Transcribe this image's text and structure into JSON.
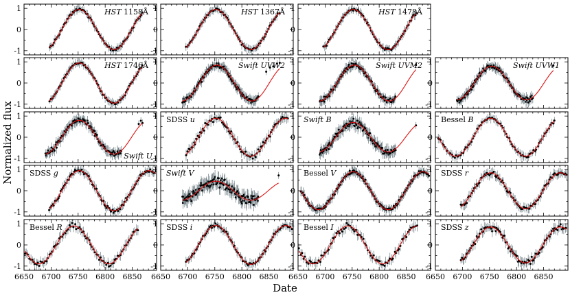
{
  "chart_data": {
    "type": "scatter",
    "xlabel": "Date",
    "ylabel": "Normalized flux",
    "xlim": [
      6650,
      6895
    ],
    "ylim": [
      -1.2,
      1.2
    ],
    "xticks": [
      "6650",
      "6700",
      "6750",
      "6800",
      "6850"
    ],
    "yticks": [
      "1",
      "0",
      "-1"
    ],
    "model": {
      "description": "sinusoid",
      "period_days": 129,
      "peak_date": 6752,
      "amplitude": 0.95,
      "color": "#dd1111"
    },
    "panels": [
      {
        "id": "hst1158",
        "row": 0,
        "col": 0,
        "label_italic": "HST",
        "label_roman": " 1158Å",
        "label_pos": "top-right",
        "x_start": 6697,
        "x_end": 6869,
        "n": 85,
        "scatter": 0.05,
        "amp": 0.95,
        "phase_shift": 0
      },
      {
        "id": "hst1367",
        "row": 0,
        "col": 1,
        "label_italic": "HST",
        "label_roman": " 1367Å",
        "label_pos": "top-right",
        "x_start": 6697,
        "x_end": 6869,
        "n": 85,
        "scatter": 0.05,
        "amp": 0.95,
        "phase_shift": 0
      },
      {
        "id": "hst1478",
        "row": 0,
        "col": 2,
        "label_italic": "HST",
        "label_roman": " 1478Å",
        "label_pos": "top-right",
        "x_start": 6697,
        "x_end": 6869,
        "n": 85,
        "scatter": 0.05,
        "amp": 0.95,
        "phase_shift": 0
      },
      {
        "id": "hst1746",
        "row": 1,
        "col": 0,
        "label_italic": "HST",
        "label_roman": " 1746Å",
        "label_pos": "top-right",
        "x_start": 6697,
        "x_end": 6869,
        "n": 85,
        "scatter": 0.05,
        "amp": 0.95,
        "phase_shift": 0
      },
      {
        "id": "swift_uvw2",
        "row": 1,
        "col": 1,
        "label_italic": "Swift UVW2",
        "label_roman": "",
        "label_pos": "top-right",
        "x_start": 6690,
        "x_end": 6830,
        "n": 140,
        "scatter": 0.09,
        "amp": 0.85,
        "phase_shift": 2,
        "extra_points": [
          [
            6845,
            0.6
          ],
          [
            6852,
            0.75
          ],
          [
            6858,
            0.85
          ],
          [
            6865,
            0.9
          ],
          [
            6870,
            0.95
          ]
        ]
      },
      {
        "id": "swift_uvm2",
        "row": 1,
        "col": 2,
        "label_italic": "Swift UVM2",
        "label_roman": "",
        "label_pos": "top-right",
        "x_start": 6690,
        "x_end": 6830,
        "n": 120,
        "scatter": 0.09,
        "amp": 0.85,
        "phase_shift": 2,
        "extra_points": [
          [
            6868,
            0.85
          ]
        ]
      },
      {
        "id": "swift_uvw1",
        "row": 1,
        "col": 3,
        "label_italic": "Swift UVW1",
        "label_roman": "",
        "label_pos": "top-right",
        "x_start": 6690,
        "x_end": 6830,
        "n": 120,
        "scatter": 0.1,
        "amp": 0.8,
        "phase_shift": 2,
        "extra_points": [
          [
            6868,
            0.85
          ]
        ]
      },
      {
        "id": "swift_u",
        "row": 2,
        "col": 0,
        "label_italic": "Swift U",
        "label_roman": "",
        "label_pos": "bottom-right",
        "x_start": 6690,
        "x_end": 6830,
        "n": 110,
        "scatter": 0.12,
        "amp": 0.8,
        "phase_shift": 0,
        "extra_points": [
          [
            6862,
            0.6
          ],
          [
            6866,
            0.75
          ],
          [
            6869,
            0.7
          ]
        ]
      },
      {
        "id": "sdss_u",
        "row": 2,
        "col": 1,
        "label_italic": "u",
        "label_roman": "SDSS ",
        "label_italic_after": true,
        "label_pos": "top-left",
        "x_start": 6697,
        "x_end": 6885,
        "n": 80,
        "scatter": 0.12,
        "amp": 0.9,
        "phase_shift": 0
      },
      {
        "id": "swift_b",
        "row": 2,
        "col": 2,
        "label_italic": "Swift B",
        "label_roman": "",
        "label_pos": "top-left",
        "x_start": 6690,
        "x_end": 6830,
        "n": 130,
        "scatter": 0.15,
        "amp": 0.7,
        "phase_shift": 0,
        "extra_points": [
          [
            6868,
            0.6
          ]
        ]
      },
      {
        "id": "bessel_b",
        "row": 2,
        "col": 3,
        "label_italic": "B",
        "label_roman": "Bessel ",
        "label_italic_after": true,
        "label_pos": "top-left",
        "x_start": 6655,
        "x_end": 6870,
        "n": 85,
        "scatter": 0.06,
        "amp": 0.9,
        "phase_shift": 0
      },
      {
        "id": "sdss_g",
        "row": 3,
        "col": 0,
        "label_italic": "g",
        "label_roman": "SDSS ",
        "label_italic_after": true,
        "label_pos": "top-left",
        "x_start": 6697,
        "x_end": 6892,
        "n": 95,
        "scatter": 0.08,
        "amp": 0.95,
        "phase_shift": 0
      },
      {
        "id": "swift_v",
        "row": 3,
        "col": 1,
        "label_italic": "Swift V",
        "label_roman": "",
        "label_pos": "top-left",
        "x_start": 6690,
        "x_end": 6830,
        "n": 140,
        "scatter": 0.22,
        "amp": 0.45,
        "phase_shift": 0,
        "extra_points": [
          [
            6868,
            0.7
          ]
        ]
      },
      {
        "id": "bessel_v",
        "row": 3,
        "col": 2,
        "label_italic": "V",
        "label_roman": "Bessel ",
        "label_italic_after": true,
        "label_pos": "top-left",
        "x_start": 6655,
        "x_end": 6892,
        "n": 170,
        "scatter": 0.07,
        "amp": 0.9,
        "phase_shift": 0
      },
      {
        "id": "sdss_r",
        "row": 3,
        "col": 3,
        "label_italic": "r",
        "label_roman": "SDSS ",
        "label_italic_after": true,
        "label_pos": "top-left",
        "x_start": 6697,
        "x_end": 6892,
        "n": 90,
        "scatter": 0.1,
        "amp": 0.85,
        "phase_shift": 0
      },
      {
        "id": "bessel_r",
        "row": 4,
        "col": 0,
        "label_italic": "R",
        "label_roman": "Bessel ",
        "label_italic_after": true,
        "label_pos": "top-left",
        "x_start": 6652,
        "x_end": 6860,
        "n": 80,
        "scatter": 0.12,
        "amp": 0.9,
        "phase_shift": -10
      },
      {
        "id": "sdss_i",
        "row": 4,
        "col": 1,
        "label_italic": "i",
        "label_roman": "SDSS ",
        "label_italic_after": true,
        "label_pos": "top-left",
        "x_start": 6697,
        "x_end": 6892,
        "n": 90,
        "scatter": 0.07,
        "amp": 0.92,
        "phase_shift": 0
      },
      {
        "id": "bessel_i",
        "row": 4,
        "col": 2,
        "label_italic": "I",
        "label_roman": "Bessel ",
        "label_italic_after": true,
        "label_pos": "top-left",
        "x_start": 6652,
        "x_end": 6870,
        "n": 80,
        "scatter": 0.12,
        "amp": 0.9,
        "phase_shift": -10
      },
      {
        "id": "sdss_z",
        "row": 4,
        "col": 3,
        "label_italic": "z",
        "label_roman": "SDSS ",
        "label_italic_after": true,
        "label_pos": "top-left",
        "x_start": 6697,
        "x_end": 6892,
        "n": 95,
        "scatter": 0.12,
        "amp": 0.85,
        "phase_shift": 0
      }
    ]
  }
}
